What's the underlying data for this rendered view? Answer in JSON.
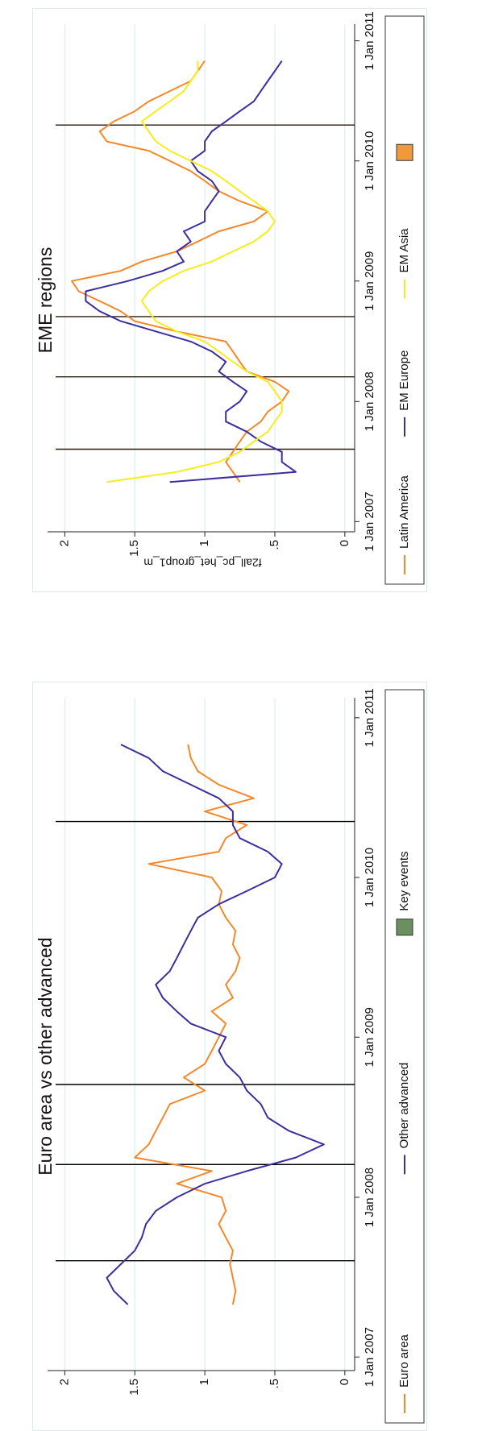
{
  "chart_data": [
    {
      "type": "line",
      "title": "Euro area vs other advanced",
      "x": [
        "2007-05-01",
        "2007-06-01",
        "2007-07-01",
        "2007-08-01",
        "2007-09-01",
        "2007-10-01",
        "2007-11-01",
        "2007-12-01",
        "2008-01-01",
        "2008-02-01",
        "2008-03-01",
        "2008-04-01",
        "2008-05-01",
        "2008-06-01",
        "2008-07-01",
        "2008-08-01",
        "2008-09-01",
        "2008-10-01",
        "2008-11-01",
        "2008-12-01",
        "2009-01-01",
        "2009-02-01",
        "2009-03-01",
        "2009-04-01",
        "2009-05-01",
        "2009-06-01",
        "2009-07-01",
        "2009-08-01",
        "2009-09-01",
        "2009-10-01",
        "2009-11-01",
        "2009-12-01",
        "2010-01-01",
        "2010-02-01",
        "2010-03-01",
        "2010-04-01",
        "2010-05-01",
        "2010-06-01",
        "2010-07-01",
        "2010-08-01",
        "2010-09-01",
        "2010-10-01",
        "2010-11-01"
      ],
      "series": [
        {
          "name": "Euro area",
          "color": "#f4882a",
          "values": [
            0.8,
            0.78,
            0.8,
            0.82,
            0.8,
            0.85,
            0.9,
            0.85,
            0.88,
            1.2,
            0.95,
            1.5,
            1.4,
            1.35,
            1.3,
            1.25,
            1.0,
            1.15,
            1.0,
            0.95,
            0.9,
            0.85,
            0.95,
            0.8,
            0.85,
            0.78,
            0.75,
            0.8,
            0.78,
            0.85,
            0.9,
            0.88,
            0.95,
            1.4,
            0.9,
            0.85,
            0.7,
            1.0,
            0.65,
            0.9,
            1.05,
            1.1,
            1.12
          ]
        },
        {
          "name": "Other advanced",
          "color": "#3b2e9e",
          "values": [
            1.55,
            1.65,
            1.7,
            1.6,
            1.5,
            1.45,
            1.42,
            1.35,
            1.2,
            1.0,
            0.7,
            0.35,
            0.15,
            0.4,
            0.55,
            0.6,
            0.7,
            0.75,
            0.85,
            0.9,
            0.85,
            1.1,
            1.2,
            1.3,
            1.35,
            1.25,
            1.2,
            1.15,
            1.1,
            1.05,
            0.9,
            0.7,
            0.5,
            0.45,
            0.55,
            0.75,
            0.8,
            0.8,
            0.9,
            1.1,
            1.3,
            1.4,
            1.6
          ]
        }
      ],
      "key_events": {
        "name": "Key events",
        "color": "#000000",
        "legend_color": "#6b8f5e",
        "dates": [
          "2007-08-09",
          "2008-03-16",
          "2008-09-15",
          "2010-05-09"
        ]
      },
      "xlim": [
        "2006-12-01",
        "2011-02-01"
      ],
      "xticks": [
        {
          "value": "2007-01-01",
          "label": "1 Jan 2007"
        },
        {
          "value": "2008-01-01",
          "label": "1 Jan 2008"
        },
        {
          "value": "2009-01-01",
          "label": "1 Jan 2009"
        },
        {
          "value": "2010-01-01",
          "label": "1 Jan 2010"
        },
        {
          "value": "2011-01-01",
          "label": "1 Jan 2011"
        }
      ],
      "ylim": [
        -0.07,
        2.1
      ],
      "yticks": [
        0,
        {
          "value": 0.5,
          "label": ".5"
        },
        1,
        1.5,
        2
      ],
      "grid": true
    },
    {
      "type": "line",
      "title": "EME regions",
      "y_label": "f2all_pc_het_group1_m",
      "x": [
        "2007-05-01",
        "2007-06-01",
        "2007-07-01",
        "2007-08-01",
        "2007-09-01",
        "2007-10-01",
        "2007-11-01",
        "2007-12-01",
        "2008-01-01",
        "2008-02-01",
        "2008-03-01",
        "2008-04-01",
        "2008-05-01",
        "2008-06-01",
        "2008-07-01",
        "2008-08-01",
        "2008-09-01",
        "2008-10-01",
        "2008-11-01",
        "2008-12-01",
        "2009-01-01",
        "2009-02-01",
        "2009-03-01",
        "2009-04-01",
        "2009-05-01",
        "2009-06-01",
        "2009-07-01",
        "2009-08-01",
        "2009-09-01",
        "2009-10-01",
        "2009-11-01",
        "2009-12-01",
        "2010-01-01",
        "2010-02-01",
        "2010-03-01",
        "2010-04-01",
        "2010-05-01",
        "2010-06-01",
        "2010-07-01",
        "2010-08-01",
        "2010-09-01",
        "2010-10-01",
        "2010-11-01"
      ],
      "series": [
        {
          "name": "Latin America",
          "color": "#f4882a",
          "values": [
            0.75,
            0.8,
            0.85,
            0.8,
            0.75,
            0.7,
            0.6,
            0.55,
            0.45,
            0.4,
            0.5,
            0.7,
            0.75,
            0.8,
            0.85,
            1.2,
            1.5,
            1.6,
            1.75,
            1.9,
            1.95,
            1.6,
            1.45,
            1.2,
            1.05,
            0.9,
            0.65,
            0.55,
            0.75,
            0.9,
            1.0,
            1.1,
            1.25,
            1.4,
            1.7,
            1.75,
            1.65,
            1.5,
            1.4,
            1.25,
            1.1,
            1.05,
            1.0
          ]
        },
        {
          "name": "EM Europe",
          "color": "#3b2e9e",
          "values": [
            1.25,
            0.35,
            0.45,
            0.45,
            0.6,
            0.7,
            0.85,
            0.85,
            0.75,
            0.7,
            0.8,
            0.9,
            0.85,
            0.95,
            1.1,
            1.35,
            1.6,
            1.75,
            1.85,
            1.85,
            1.55,
            1.3,
            1.15,
            1.2,
            1.1,
            1.15,
            1.0,
            1.0,
            0.95,
            0.9,
            0.95,
            1.05,
            1.1,
            1.0,
            1.0,
            0.95,
            0.85,
            0.75,
            0.65,
            0.6,
            0.55,
            0.5,
            0.45
          ]
        },
        {
          "name": "EM Asia",
          "color": "#f5ee1c",
          "values": [
            1.7,
            1.2,
            0.9,
            0.75,
            0.65,
            0.55,
            0.5,
            0.45,
            0.45,
            0.5,
            0.55,
            0.7,
            0.8,
            0.9,
            1.0,
            1.2,
            1.35,
            1.4,
            1.45,
            1.4,
            1.3,
            1.15,
            0.95,
            0.8,
            0.65,
            0.55,
            0.5,
            0.55,
            0.65,
            0.75,
            0.85,
            0.95,
            1.1,
            1.25,
            1.35,
            1.4,
            1.45,
            1.35,
            1.25,
            1.15,
            1.1,
            1.05,
            1.05
          ]
        }
      ],
      "key_events": {
        "color": "#2a1a10",
        "legend_color": "#f0993a",
        "dates": [
          "2007-08-09",
          "2008-03-16",
          "2008-09-15",
          "2010-04-20"
        ]
      },
      "xlim": [
        "2006-12-01",
        "2011-02-01"
      ],
      "xticks": [
        {
          "value": "2007-01-01",
          "label": "1 Jan 2007"
        },
        {
          "value": "2008-01-01",
          "label": "1 Jan 2008"
        },
        {
          "value": "2009-01-01",
          "label": "1 Jan 2009"
        },
        {
          "value": "2010-01-01",
          "label": "1 Jan 2010"
        },
        {
          "value": "2011-01-01",
          "label": "1 Jan 2011"
        }
      ],
      "ylim": [
        -0.07,
        2.1
      ],
      "yticks": [
        0,
        {
          "value": 0.5,
          "label": ".5"
        },
        1,
        1.5,
        2
      ],
      "grid": true
    }
  ]
}
